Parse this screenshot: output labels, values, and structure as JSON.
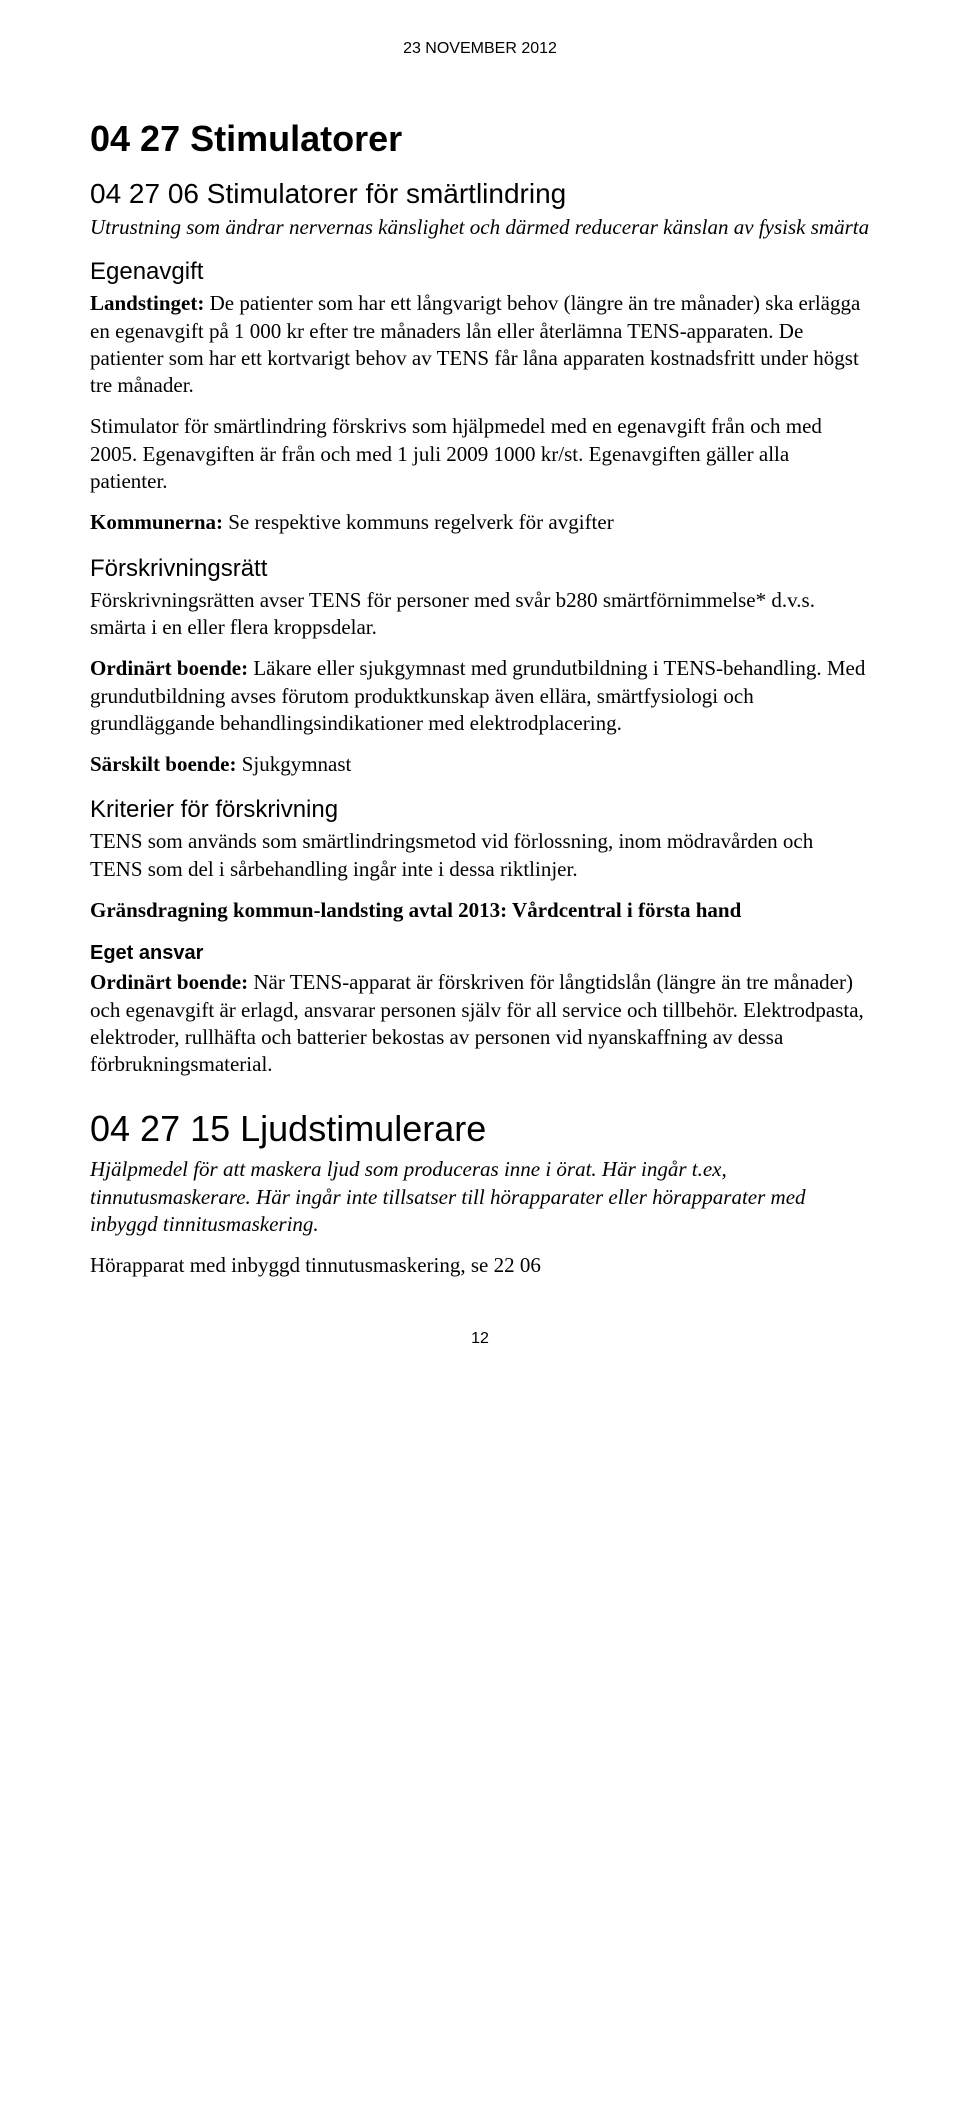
{
  "header": {
    "date": "23 NOVEMBER 2012"
  },
  "title1": "04 27 Stimulatorer",
  "section1": {
    "heading": "04 27 06 Stimulatorer för smärtlindring",
    "subtitle": "Utrustning som ändrar nervernas känslighet och därmed reducerar känslan av fysisk smärta",
    "egen_heading": "Egenavgift",
    "p1_bold": "Landstinget:",
    "p1_rest": " De patienter som har ett långvarigt behov (längre än tre månader) ska erlägga en egenavgift på 1 000 kr efter tre månaders lån eller återlämna TENS-apparaten. De patienter som har ett kortvarigt behov av TENS får låna apparaten kostnadsfritt under högst tre månader.",
    "p2": "Stimulator för smärtlindring förskrivs som hjälpmedel med en egenavgift från och med 2005. Egenavgiften är från och med 1 juli 2009 1000 kr/st. Egenavgiften gäller alla patienter.",
    "p3_bold": "Kommunerna:",
    "p3_rest": " Se respektive kommuns regelverk för avgifter",
    "forskr_heading": "Förskrivningsrätt",
    "p4": "Förskrivningsrätten avser TENS för personer med svår b280 smärtförnimmelse* d.v.s. smärta i en eller flera kroppsdelar.",
    "p5_bold": "Ordinärt boende:",
    "p5_rest": " Läkare eller sjukgymnast med grundutbildning i TENS-behandling. Med grundutbildning avses förutom produktkunskap även ellära, smärtfysiologi och grundläggande behandlingsindikationer med elektrodplacering.",
    "p6_bold": "Särskilt boende:",
    "p6_rest": " Sjukgymnast",
    "krit_heading": "Kriterier för förskrivning",
    "p7": "TENS som används som smärtlindringsmetod vid förlossning, inom mödravården och TENS som del i sårbehandling ingår inte i dessa riktlinjer.",
    "p8": "Gränsdragning kommun-landsting avtal 2013: Vårdcentral i första hand",
    "eget_heading": "Eget ansvar",
    "p9_bold": "Ordinärt boende:",
    "p9_rest": " När TENS-apparat är förskriven för långtidslån (längre än tre månader) och egenavgift är erlagd, ansvarar personen själv för all service och tillbehör. Elektrodpasta, elektroder, rullhäfta och batterier bekostas av personen vid nyanskaffning av dessa förbrukningsmaterial."
  },
  "section2": {
    "heading": "04 27 15 Ljudstimulerare",
    "p1": "Hjälpmedel för att maskera ljud som produceras inne i örat. Här ingår t.ex, tinnutusmaskerare. Här ingår inte tillsatser till hörapparater eller hörapparater med inbyggd tinnitusmaskering.",
    "p2": "Hörapparat med inbyggd tinnutusmaskering, se 22 06"
  },
  "footer": {
    "page_number": "12"
  }
}
